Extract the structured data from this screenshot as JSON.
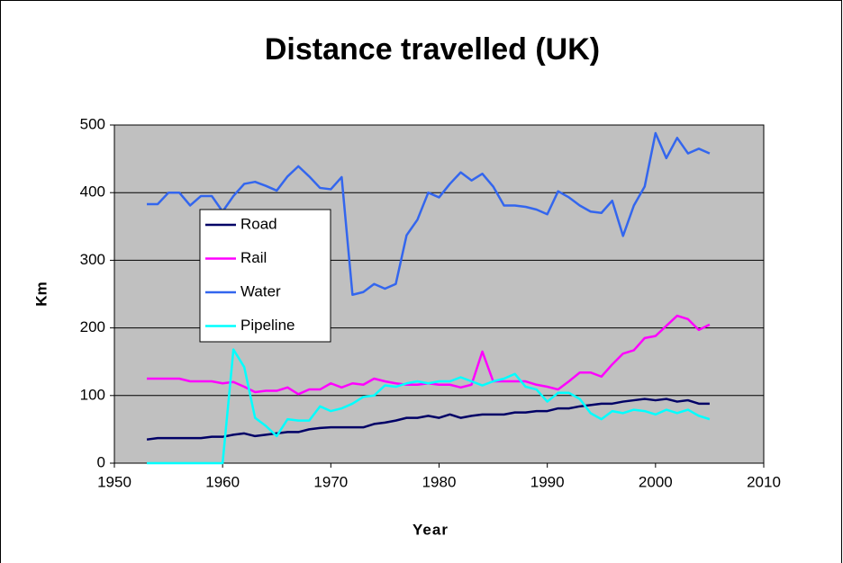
{
  "chart_data": {
    "type": "line",
    "title": "Distance travelled (UK)",
    "x_label": "Year",
    "y_label": "Km",
    "x": [
      1953,
      1954,
      1955,
      1956,
      1957,
      1958,
      1959,
      1960,
      1961,
      1962,
      1963,
      1964,
      1965,
      1966,
      1967,
      1968,
      1969,
      1970,
      1971,
      1972,
      1973,
      1974,
      1975,
      1976,
      1977,
      1978,
      1979,
      1980,
      1981,
      1982,
      1983,
      1984,
      1985,
      1986,
      1987,
      1988,
      1989,
      1990,
      1991,
      1992,
      1993,
      1994,
      1995,
      1996,
      1997,
      1998,
      1999,
      2000,
      2001,
      2002,
      2003,
      2004,
      2005
    ],
    "series": [
      {
        "name": "Road",
        "color": "#000066",
        "values": [
          35,
          37,
          37,
          37,
          37,
          37,
          39,
          39,
          42,
          44,
          40,
          42,
          44,
          46,
          46,
          50,
          52,
          53,
          53,
          53,
          53,
          58,
          60,
          63,
          67,
          67,
          70,
          67,
          72,
          67,
          70,
          72,
          72,
          72,
          75,
          75,
          77,
          77,
          81,
          81,
          84,
          86,
          88,
          88,
          91,
          93,
          95,
          93,
          95,
          91,
          93,
          88,
          88
        ]
      },
      {
        "name": "Rail",
        "color": "#ff00ff",
        "values": [
          125,
          125,
          125,
          125,
          121,
          121,
          121,
          118,
          120,
          113,
          105,
          107,
          107,
          112,
          102,
          109,
          109,
          118,
          112,
          118,
          116,
          125,
          121,
          118,
          116,
          116,
          118,
          116,
          116,
          112,
          116,
          165,
          121,
          121,
          121,
          121,
          116,
          113,
          109,
          121,
          134,
          134,
          128,
          146,
          162,
          167,
          185,
          188,
          203,
          218,
          213,
          197,
          205
        ]
      },
      {
        "name": "Water",
        "color": "#3366ee",
        "values": [
          383,
          383,
          400,
          400,
          381,
          395,
          395,
          372,
          395,
          413,
          416,
          410,
          403,
          424,
          439,
          424,
          407,
          405,
          423,
          249,
          253,
          265,
          258,
          265,
          337,
          360,
          400,
          393,
          413,
          430,
          418,
          428,
          409,
          381,
          381,
          379,
          375,
          368,
          402,
          393,
          381,
          372,
          370,
          388,
          336,
          381,
          409,
          488,
          451,
          481,
          458,
          465,
          458
        ]
      },
      {
        "name": "Pipeline",
        "color": "#00ffff",
        "values": [
          0,
          0,
          0,
          0,
          0,
          0,
          0,
          0,
          168,
          142,
          67,
          55,
          40,
          65,
          63,
          63,
          84,
          77,
          81,
          88,
          98,
          100,
          115,
          113,
          118,
          121,
          118,
          121,
          121,
          127,
          121,
          115,
          121,
          125,
          132,
          113,
          109,
          91,
          104,
          104,
          95,
          74,
          65,
          77,
          74,
          79,
          77,
          72,
          79,
          74,
          79,
          70,
          65
        ]
      }
    ],
    "xlim": [
      1950,
      2010
    ],
    "xticks": [
      1950,
      1960,
      1970,
      1980,
      1990,
      2000,
      2010
    ],
    "ylim": [
      0,
      500
    ],
    "yticks": [
      0,
      100,
      200,
      300,
      400,
      500
    ],
    "grid": true
  }
}
